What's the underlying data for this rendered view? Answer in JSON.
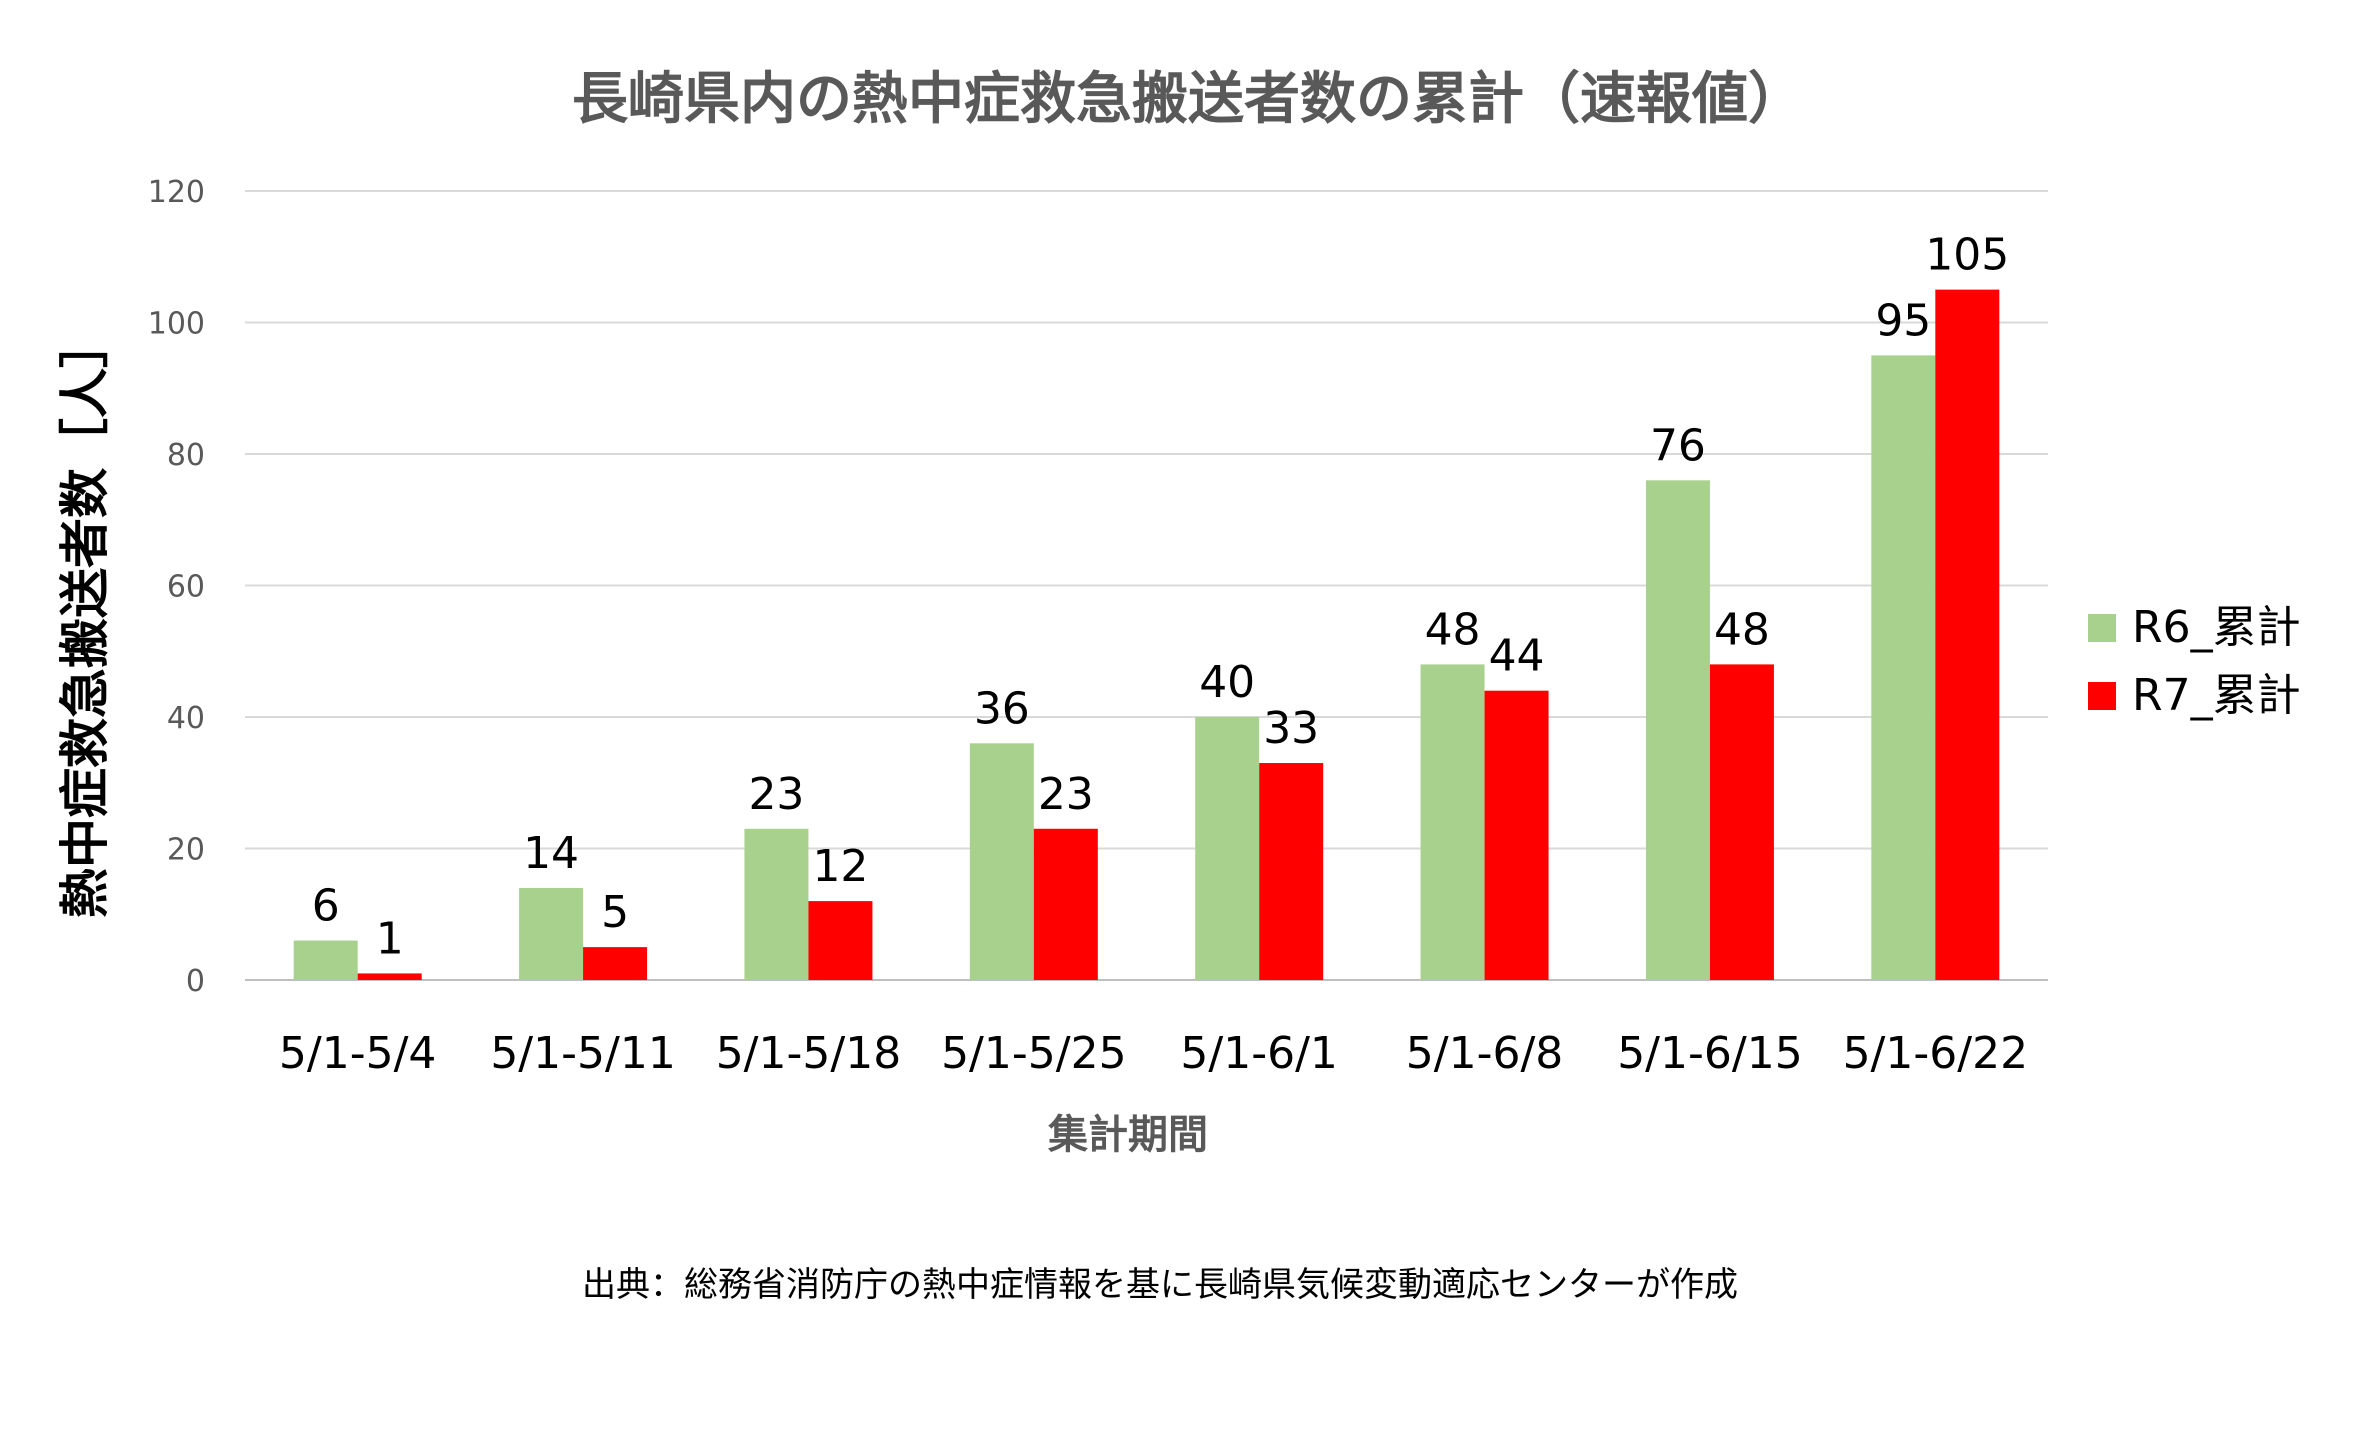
{
  "chart_data": {
    "type": "bar",
    "title": "長崎県内の熱中症救急搬送者数の累計（速報値）",
    "xlabel": "集計期間",
    "ylabel": "熱中症救急搬送者数［人］",
    "categories": [
      "5/1-5/4",
      "5/1-5/11",
      "5/1-5/18",
      "5/1-5/25",
      "5/1-6/1",
      "5/1-6/8",
      "5/1-6/15",
      "5/1-6/22"
    ],
    "series": [
      {
        "name": "R6_累計",
        "color": "#a9d18e",
        "values": [
          6,
          14,
          23,
          36,
          40,
          48,
          76,
          95
        ]
      },
      {
        "name": "R7_累計",
        "color": "#ff0000",
        "values": [
          1,
          5,
          12,
          23,
          33,
          44,
          48,
          105
        ]
      }
    ],
    "ylim": [
      0,
      120
    ],
    "yticks": [
      0,
      20,
      40,
      60,
      80,
      100,
      120
    ],
    "grid": true,
    "legend_position": "right",
    "data_labels": true
  },
  "source_note": "出典：総務省消防庁の熱中症情報を基に長崎県気候変動適応センターが作成"
}
